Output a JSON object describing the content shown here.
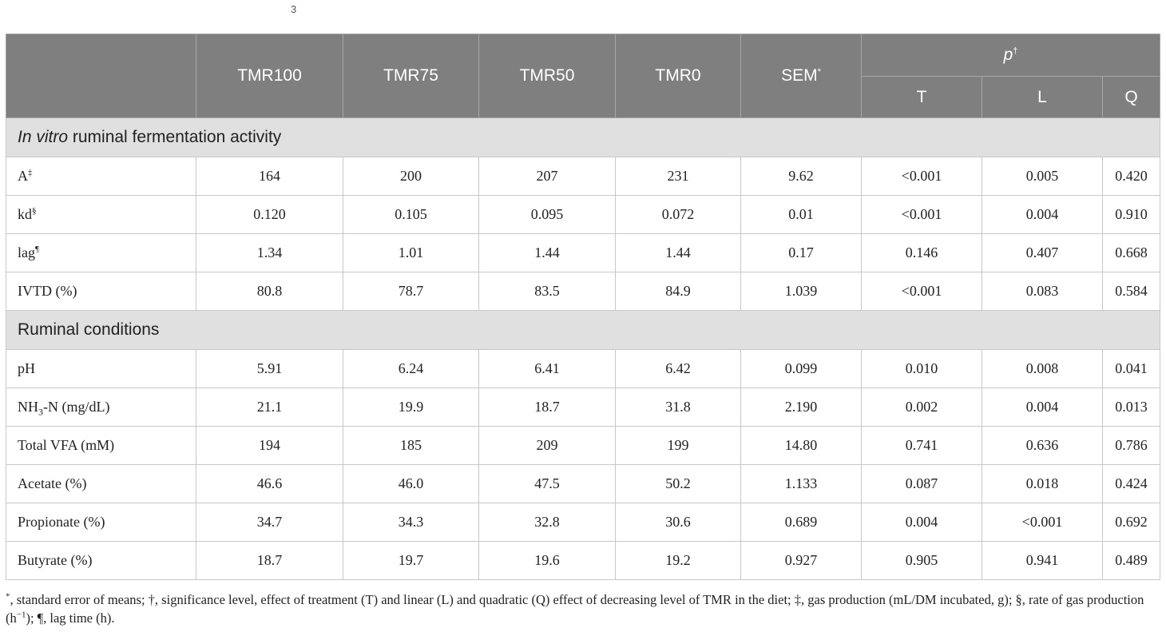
{
  "page_number": "3",
  "header": {
    "columns": [
      "TMR100",
      "TMR75",
      "TMR50",
      "TMR0"
    ],
    "sem": "SEM",
    "sem_mark": "*",
    "p_label": "p",
    "p_mark": "†",
    "p_sub": [
      "T",
      "L",
      "Q"
    ]
  },
  "sections": [
    {
      "title_italic": "In vitro",
      "title_rest": " ruminal fermentation activity",
      "rows": [
        {
          "label": "A",
          "mark": "‡",
          "cells": [
            "164",
            "200",
            "207",
            "231",
            "9.62",
            "<0.001",
            "0.005",
            "0.420"
          ]
        },
        {
          "label": "kd",
          "mark": "§",
          "cells": [
            "0.120",
            "0.105",
            "0.095",
            "0.072",
            "0.01",
            "<0.001",
            "0.004",
            "0.910"
          ]
        },
        {
          "label": "lag",
          "mark": "¶",
          "cells": [
            "1.34",
            "1.01",
            "1.44",
            "1.44",
            "0.17",
            "0.146",
            "0.407",
            "0.668"
          ]
        },
        {
          "label": "IVTD (%)",
          "cells": [
            "80.8",
            "78.7",
            "83.5",
            "84.9",
            "1.039",
            "<0.001",
            "0.083",
            "0.584"
          ]
        }
      ]
    },
    {
      "title_italic": "",
      "title_rest": "Ruminal conditions",
      "rows": [
        {
          "label": "pH",
          "cells": [
            "5.91",
            "6.24",
            "6.41",
            "6.42",
            "0.099",
            "0.010",
            "0.008",
            "0.041"
          ]
        },
        {
          "label_pre": "NH",
          "label_sub": "3",
          "label": "-N (mg/dL)",
          "cells": [
            "21.1",
            "19.9",
            "18.7",
            "31.8",
            "2.190",
            "0.002",
            "0.004",
            "0.013"
          ]
        },
        {
          "label": "Total VFA (mM)",
          "cells": [
            "194",
            "185",
            "209",
            "199",
            "14.80",
            "0.741",
            "0.636",
            "0.786"
          ]
        },
        {
          "label": "Acetate (%)",
          "cells": [
            "46.6",
            "46.0",
            "47.5",
            "50.2",
            "1.133",
            "0.087",
            "0.018",
            "0.424"
          ]
        },
        {
          "label": "Propionate (%)",
          "cells": [
            "34.7",
            "34.3",
            "32.8",
            "30.6",
            "0.689",
            "0.004",
            "<0.001",
            "0.692"
          ]
        },
        {
          "label": "Butyrate (%)",
          "cells": [
            "18.7",
            "19.7",
            "19.6",
            "19.2",
            "0.927",
            "0.905",
            "0.941",
            "0.489"
          ]
        }
      ]
    }
  ],
  "footnote": {
    "star": "*",
    "part1": ", standard error of means; †, significance level, effect of treatment (T) and linear (L) and quadratic (Q) effect of decreasing level of TMR in the diet; ‡, gas production (mL/DM incubated, g); §, rate of gas production (h",
    "exp": "−1",
    "part2": "); ¶, lag time (h)."
  }
}
